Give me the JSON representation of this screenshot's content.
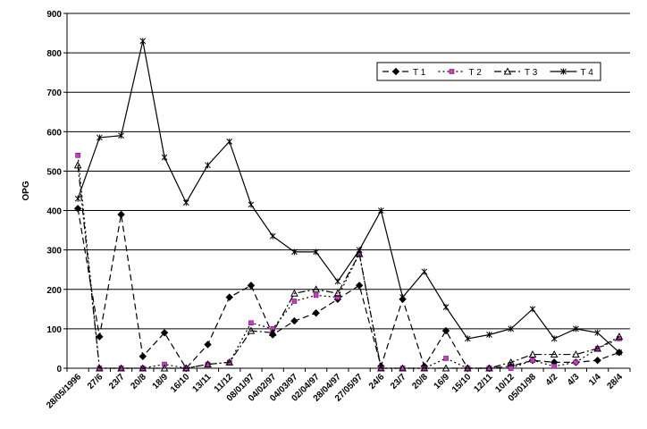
{
  "chart_data": {
    "type": "line",
    "title": "",
    "xlabel": "",
    "ylabel": "OPG",
    "ylim": [
      0,
      900
    ],
    "yticks": [
      0,
      100,
      200,
      300,
      400,
      500,
      600,
      700,
      800,
      900
    ],
    "grid": "horizontal",
    "legend_position": "top-right",
    "categories": [
      "28/05/1996",
      "27/6",
      "23/7",
      "20/8",
      "18/9",
      "16/10",
      "13/11",
      "11/12",
      "08/01/97",
      "04/02/97",
      "04/03/97",
      "02/04/97",
      "28/04/97",
      "27/05/97",
      "24/6",
      "23/7",
      "20/8",
      "16/9",
      "15/10",
      "12/11",
      "10/12",
      "05/01/98",
      "4/2",
      "4/3",
      "1/4",
      "28/4"
    ],
    "series": [
      {
        "name": "T 1",
        "color": "#000000",
        "marker": "diamond",
        "dash": "7,4",
        "values": [
          405,
          80,
          390,
          30,
          90,
          0,
          60,
          180,
          210,
          85,
          120,
          140,
          175,
          210,
          5,
          175,
          5,
          95,
          0,
          0,
          5,
          20,
          15,
          15,
          20,
          40
        ]
      },
      {
        "name": "T 2",
        "color": "#000000",
        "marker": "square",
        "dash": "2,3",
        "values": [
          540,
          0,
          0,
          0,
          10,
          0,
          10,
          15,
          115,
          100,
          170,
          185,
          180,
          290,
          0,
          0,
          0,
          25,
          0,
          0,
          0,
          20,
          5,
          15,
          50,
          75
        ]
      },
      {
        "name": "T 3",
        "color": "#000000",
        "marker": "triangle",
        "dash": "8,3,2,3",
        "values": [
          515,
          0,
          0,
          0,
          0,
          0,
          10,
          15,
          95,
          90,
          190,
          200,
          190,
          290,
          0,
          0,
          0,
          0,
          0,
          0,
          15,
          35,
          35,
          35,
          50,
          80
        ]
      },
      {
        "name": "T 4",
        "color": "#000000",
        "marker": "star",
        "dash": "",
        "values": [
          430,
          585,
          590,
          830,
          535,
          420,
          515,
          575,
          415,
          335,
          295,
          295,
          220,
          300,
          400,
          180,
          245,
          155,
          75,
          85,
          100,
          150,
          75,
          100,
          90,
          40
        ]
      }
    ]
  }
}
